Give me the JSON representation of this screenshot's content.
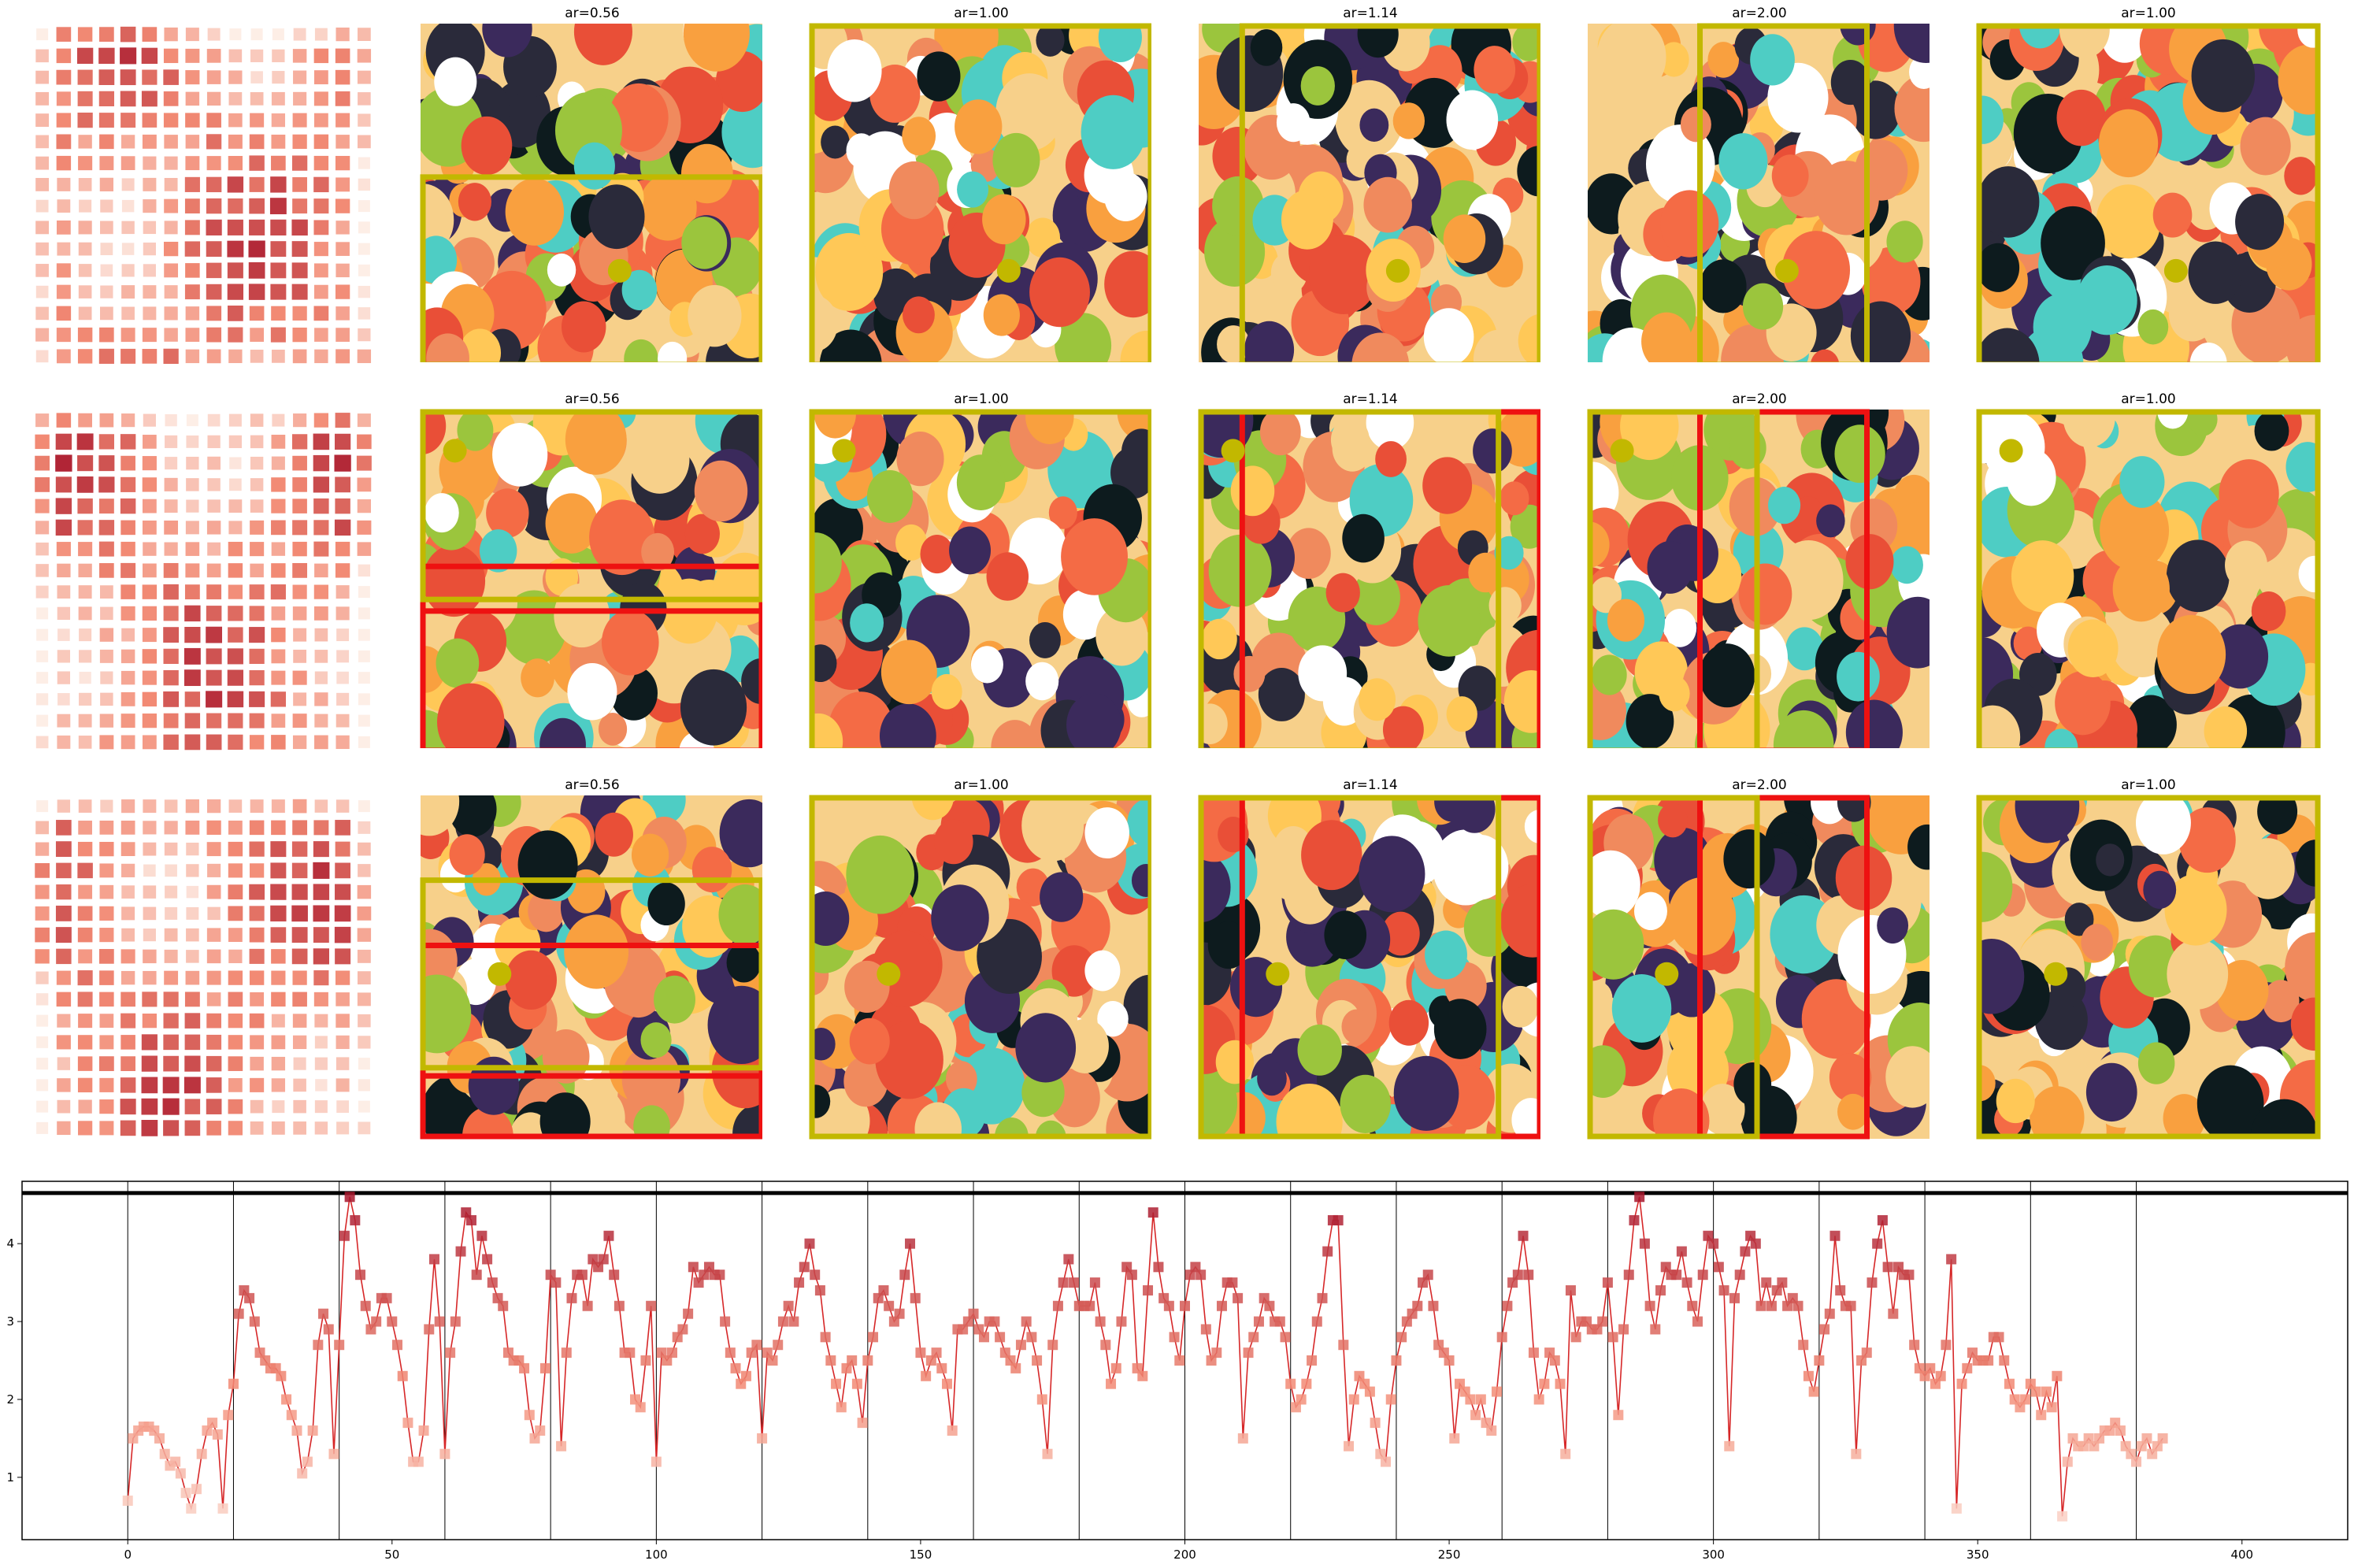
{
  "grid": {
    "rows": 3,
    "titles": [
      "ar=0.56",
      "ar=1.00",
      "ar=1.14",
      "ar=2.00",
      "ar=1.00"
    ],
    "colors": {
      "box_selected": "#c2b800",
      "box_rejected": "#ee1111",
      "point": "#c2b800",
      "heatmap_low": "#fdeee6",
      "heatmap_mid": "#f28a74",
      "heatmap_high": "#a8172d"
    }
  },
  "chart_data": {
    "type": "line",
    "marker": "square",
    "xlim": [
      -20,
      420
    ],
    "ylim": [
      0.2,
      4.8
    ],
    "xticks": [
      "0",
      "50",
      "100",
      "150",
      "200",
      "250",
      "300",
      "350",
      "400"
    ],
    "yticks": [
      "1",
      "2",
      "3",
      "4"
    ],
    "vlines": [
      0,
      20,
      40,
      60,
      80,
      100,
      120,
      140,
      160,
      180,
      200,
      220,
      240,
      260,
      280,
      300,
      320,
      340,
      360,
      380
    ],
    "hline": 4.65,
    "line_color": "#d62728",
    "y": [
      0.7,
      1.5,
      1.6,
      1.65,
      1.65,
      1.6,
      1.5,
      1.3,
      1.15,
      1.2,
      1.05,
      0.8,
      0.6,
      0.85,
      1.3,
      1.6,
      1.7,
      1.55,
      0.6,
      1.8,
      2.2,
      3.1,
      3.4,
      3.3,
      3.0,
      2.6,
      2.5,
      2.4,
      2.4,
      2.3,
      2.0,
      1.8,
      1.6,
      1.05,
      1.2,
      1.6,
      2.7,
      3.1,
      2.9,
      1.3,
      2.7,
      4.1,
      4.6,
      4.3,
      3.6,
      3.2,
      2.9,
      3.0,
      3.3,
      3.3,
      3.0,
      2.7,
      2.3,
      1.7,
      1.2,
      1.2,
      1.6,
      2.9,
      3.8,
      3.0,
      1.3,
      2.6,
      3.0,
      3.9,
      4.4,
      4.3,
      3.6,
      4.1,
      3.8,
      3.5,
      3.3,
      3.2,
      2.6,
      2.5,
      2.5,
      2.4,
      1.8,
      1.5,
      1.6,
      2.4,
      3.6,
      3.5,
      1.4,
      2.6,
      3.3,
      3.6,
      3.6,
      3.2,
      3.8,
      3.7,
      3.8,
      4.1,
      3.6,
      3.2,
      2.6,
      2.6,
      2.0,
      1.9,
      2.5,
      3.2,
      1.2,
      2.6,
      2.5,
      2.6,
      2.8,
      2.9,
      3.1,
      3.7,
      3.5,
      3.6,
      3.7,
      3.6,
      3.6,
      3.0,
      2.6,
      2.4,
      2.2,
      2.3,
      2.6,
      2.7,
      1.5,
      2.6,
      2.5,
      2.7,
      3.0,
      3.2,
      3.0,
      3.5,
      3.7,
      4.0,
      3.6,
      3.4,
      2.8,
      2.5,
      2.2,
      1.9,
      2.4,
      2.5,
      2.2,
      1.7,
      2.5,
      2.8,
      3.3,
      3.4,
      3.2,
      3.0,
      3.1,
      3.6,
      4.0,
      3.3,
      2.6,
      2.3,
      2.5,
      2.6,
      2.4,
      2.2,
      1.6,
      2.9,
      2.9,
      3.0,
      3.1,
      2.9,
      2.8,
      3.0,
      3.0,
      2.8,
      2.6,
      2.5,
      2.4,
      2.7,
      3.0,
      2.8,
      2.5,
      2.0,
      1.3,
      2.7,
      3.2,
      3.5,
      3.8,
      3.5,
      3.2,
      3.2,
      3.2,
      3.5,
      3.0,
      2.7,
      2.2,
      2.4,
      3.0,
      3.7,
      3.6,
      2.4,
      2.3,
      3.4,
      4.4,
      3.7,
      3.3,
      3.2,
      2.8,
      2.5,
      3.2,
      3.6,
      3.7,
      3.6,
      2.9,
      2.5,
      2.6,
      3.2,
      3.5,
      3.5,
      3.3,
      1.5,
      2.6,
      2.8,
      3.0,
      3.3,
      3.2,
      3.0,
      3.0,
      2.8,
      2.2,
      1.9,
      2.0,
      2.2,
      2.5,
      3.0,
      3.3,
      3.9,
      4.3,
      4.3,
      2.7,
      1.4,
      2.0,
      2.3,
      2.2,
      2.1,
      1.7,
      1.3,
      1.2,
      2.0,
      2.5,
      2.8,
      3.0,
      3.1,
      3.2,
      3.5,
      3.6,
      3.2,
      2.7,
      2.6,
      2.5,
      1.5,
      2.2,
      2.1,
      2.0,
      1.8,
      2.0,
      1.7,
      1.6,
      2.1,
      2.8,
      3.2,
      3.5,
      3.6,
      4.1,
      3.6,
      2.6,
      2.0,
      2.2,
      2.6,
      2.5,
      2.2,
      1.3,
      3.4,
      2.8,
      3.0,
      3.0,
      2.9,
      2.9,
      3.0,
      3.5,
      2.8,
      1.8,
      2.9,
      3.6,
      4.3,
      4.6,
      4.0,
      3.2,
      2.9,
      3.4,
      3.7,
      3.6,
      3.6,
      3.9,
      3.5,
      3.2,
      3.0,
      3.6,
      4.1,
      4.0,
      3.7,
      3.4,
      1.4,
      3.3,
      3.6,
      3.9,
      4.1,
      4.0,
      3.2,
      3.5,
      3.2,
      3.4,
      3.5,
      3.2,
      3.3,
      3.2,
      2.7,
      2.3,
      2.1,
      2.5,
      2.9,
      3.1,
      4.1,
      3.4,
      3.2,
      3.2,
      1.3,
      2.5,
      2.6,
      3.5,
      4.0,
      4.3,
      3.7,
      3.1,
      3.7,
      3.6,
      3.6,
      2.7,
      2.4,
      2.3,
      2.4,
      2.2,
      2.3,
      2.7,
      3.8,
      0.6,
      2.2,
      2.4,
      2.6,
      2.5,
      2.5,
      2.5,
      2.8,
      2.8,
      2.5,
      2.2,
      2.0,
      1.9,
      2.0,
      2.2,
      2.1,
      1.8,
      2.1,
      1.9,
      2.3,
      0.5,
      1.2,
      1.5,
      1.4,
      1.4,
      1.5,
      1.4,
      1.5,
      1.6,
      1.6,
      1.7,
      1.6,
      1.4,
      1.3,
      1.2,
      1.4,
      1.5,
      1.3,
      1.4,
      1.5
    ]
  }
}
